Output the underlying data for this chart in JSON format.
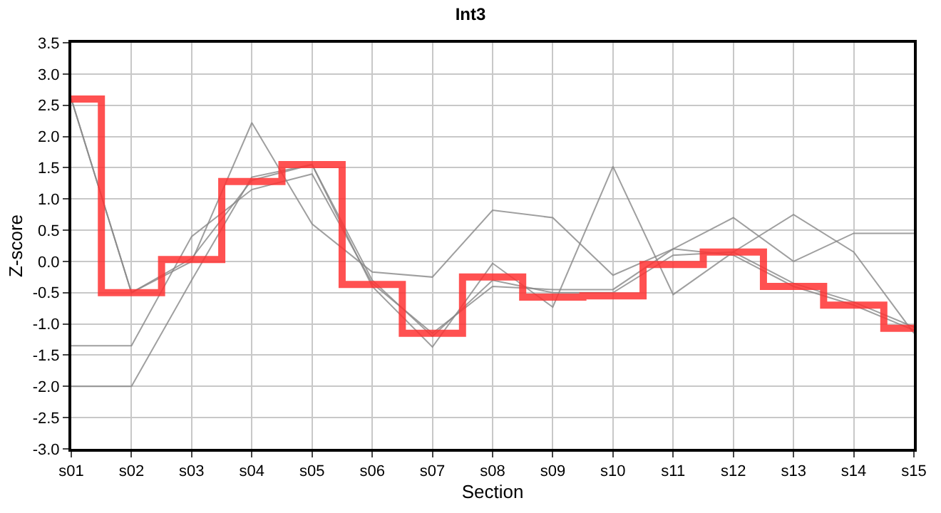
{
  "chart_data": {
    "type": "line",
    "title": "Int3",
    "xlabel": "Section",
    "ylabel": "Z-score",
    "categories": [
      "s01",
      "s02",
      "s03",
      "s04",
      "s05",
      "s06",
      "s07",
      "s08",
      "s09",
      "s10",
      "s11",
      "s12",
      "s13",
      "s14",
      "s15"
    ],
    "series": [
      {
        "color": "#888888",
        "values": [
          -2.0,
          -2.0,
          -0.3,
          1.35,
          1.55,
          -0.3,
          -1.2,
          -0.3,
          -0.5,
          -0.5,
          0.1,
          0.15,
          -0.35,
          -0.65,
          -1.05
        ]
      },
      {
        "color": "#888888",
        "values": [
          -1.35,
          -1.35,
          0.4,
          1.15,
          1.4,
          -0.35,
          -1.15,
          -0.4,
          -0.45,
          -0.45,
          0.2,
          0.1,
          -0.4,
          -0.7,
          -1.1
        ]
      },
      {
        "color": "#888888",
        "values": [
          2.6,
          -0.5,
          0.0,
          2.22,
          0.6,
          -0.17,
          -0.25,
          0.82,
          0.7,
          -0.22,
          0.2,
          0.7,
          0.0,
          0.45,
          0.45
        ]
      },
      {
        "color": "#888888",
        "values": [
          2.6,
          -0.5,
          0.05,
          1.3,
          1.55,
          -0.4,
          -1.37,
          -0.03,
          -0.73,
          1.52,
          -0.53,
          0.15,
          0.75,
          0.15,
          -1.15
        ]
      },
      {
        "type": "step",
        "color": "#ff3333",
        "values": [
          2.6,
          -0.5,
          0.03,
          1.28,
          1.55,
          -0.37,
          -1.15,
          -0.25,
          -0.57,
          -0.55,
          -0.05,
          0.15,
          -0.4,
          -0.7,
          -1.07
        ]
      }
    ],
    "ylim": [
      -3.0,
      3.5
    ],
    "yticks": [
      {
        "value": -3.0,
        "label": "-3.0"
      },
      -2.5,
      {
        "value": -2.0,
        "label": "-2.0"
      },
      -1.5,
      {
        "value": -1.0,
        "label": "-1.0"
      },
      -0.5,
      {
        "value": 0,
        "label": "0.0"
      },
      0.5,
      {
        "value": 1.0,
        "label": "1.0"
      },
      1.5,
      {
        "value": 2.0,
        "label": "2.0"
      },
      2.5,
      {
        "value": 3.0,
        "label": "3.0"
      },
      3.5
    ],
    "grid": true,
    "marker": "none",
    "line_style": "solid"
  }
}
